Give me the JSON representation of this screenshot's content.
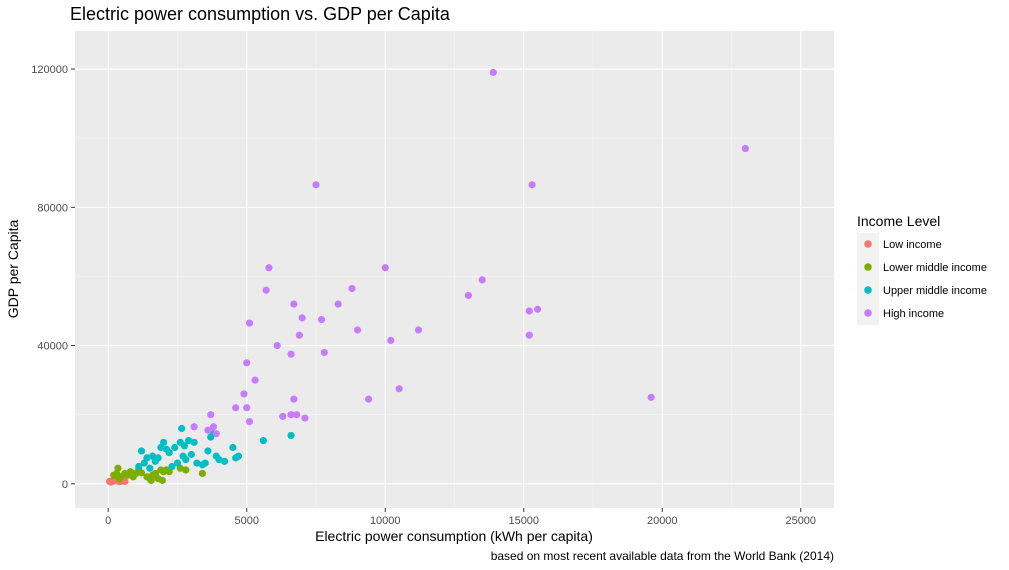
{
  "chart_data": {
    "type": "scatter",
    "title": "Electric power consumption vs. GDP per Capita",
    "xlabel": "Electric power consumption (kWh per capita)",
    "ylabel": "GDP per Capita",
    "caption": "based on most recent available data from the World Bank (2014)",
    "xlim": [
      -1200,
      26200
    ],
    "ylim": [
      -7000,
      131000
    ],
    "x_ticks": [
      0,
      5000,
      10000,
      15000,
      20000,
      25000
    ],
    "x_tick_labels": [
      "0",
      "5000",
      "10000",
      "15000",
      "20000",
      "25000"
    ],
    "y_ticks": [
      0,
      40000,
      80000,
      120000
    ],
    "y_tick_labels": [
      "0",
      "40000",
      "80000",
      "120000"
    ],
    "grid": true,
    "legend": {
      "title": "Income Level",
      "position": "right"
    },
    "series": [
      {
        "name": "Low income",
        "color": "#F8766D",
        "points": [
          [
            50,
            700
          ],
          [
            100,
            500
          ],
          [
            150,
            900
          ],
          [
            200,
            800
          ],
          [
            300,
            1200
          ],
          [
            400,
            600
          ],
          [
            500,
            800
          ],
          [
            550,
            1000
          ],
          [
            600,
            700
          ]
        ]
      },
      {
        "name": "Lower middle income",
        "color": "#7CAE00",
        "points": [
          [
            200,
            2500
          ],
          [
            300,
            3000
          ],
          [
            350,
            4500
          ],
          [
            400,
            1500
          ],
          [
            450,
            2000
          ],
          [
            600,
            3000
          ],
          [
            700,
            2500
          ],
          [
            800,
            3500
          ],
          [
            900,
            2000
          ],
          [
            1000,
            3000
          ],
          [
            1100,
            4000
          ],
          [
            1200,
            3200
          ],
          [
            1400,
            2000
          ],
          [
            1500,
            1500
          ],
          [
            1550,
            1000
          ],
          [
            1600,
            2500
          ],
          [
            1700,
            3000
          ],
          [
            1800,
            1500
          ],
          [
            1900,
            4000
          ],
          [
            1950,
            1000
          ],
          [
            2000,
            3500
          ],
          [
            2100,
            4000
          ],
          [
            2200,
            3500
          ],
          [
            2600,
            4500
          ],
          [
            2800,
            4000
          ],
          [
            3400,
            3000
          ]
        ]
      },
      {
        "name": "Upper middle income",
        "color": "#00BFC4",
        "points": [
          [
            1100,
            5000
          ],
          [
            1200,
            9500
          ],
          [
            1300,
            6000
          ],
          [
            1400,
            7500
          ],
          [
            1500,
            4500
          ],
          [
            1600,
            8000
          ],
          [
            1700,
            6500
          ],
          [
            1800,
            7500
          ],
          [
            1900,
            10500
          ],
          [
            2000,
            12000
          ],
          [
            2100,
            10000
          ],
          [
            2200,
            9000
          ],
          [
            2300,
            5000
          ],
          [
            2400,
            10500
          ],
          [
            2500,
            6000
          ],
          [
            2600,
            12000
          ],
          [
            2650,
            16000
          ],
          [
            2700,
            8000
          ],
          [
            2750,
            11000
          ],
          [
            2800,
            7000
          ],
          [
            2900,
            12500
          ],
          [
            3000,
            8500
          ],
          [
            3100,
            12000
          ],
          [
            3200,
            6000
          ],
          [
            3400,
            5500
          ],
          [
            3500,
            6000
          ],
          [
            3600,
            9500
          ],
          [
            3700,
            13500
          ],
          [
            3800,
            14500
          ],
          [
            3900,
            8000
          ],
          [
            4000,
            7000
          ],
          [
            4200,
            6500
          ],
          [
            4500,
            10500
          ],
          [
            4600,
            7500
          ],
          [
            4700,
            8000
          ],
          [
            5600,
            12500
          ],
          [
            6600,
            14000
          ]
        ]
      },
      {
        "name": "High income",
        "color": "#C77CFF",
        "points": [
          [
            3100,
            16500
          ],
          [
            3600,
            15500
          ],
          [
            3700,
            20000
          ],
          [
            3800,
            16500
          ],
          [
            3900,
            14500
          ],
          [
            4600,
            22000
          ],
          [
            4900,
            26000
          ],
          [
            5000,
            35000
          ],
          [
            5000,
            22000
          ],
          [
            5100,
            18000
          ],
          [
            5100,
            46500
          ],
          [
            5300,
            30000
          ],
          [
            5700,
            56000
          ],
          [
            5800,
            62500
          ],
          [
            6100,
            40000
          ],
          [
            6300,
            19500
          ],
          [
            6600,
            37500
          ],
          [
            6600,
            20000
          ],
          [
            6700,
            52000
          ],
          [
            6700,
            24500
          ],
          [
            6800,
            20000
          ],
          [
            6900,
            43000
          ],
          [
            7000,
            48000
          ],
          [
            7100,
            19000
          ],
          [
            7500,
            86500
          ],
          [
            7700,
            47500
          ],
          [
            7800,
            38000
          ],
          [
            8300,
            52000
          ],
          [
            8800,
            56500
          ],
          [
            9000,
            44500
          ],
          [
            9400,
            24500
          ],
          [
            10000,
            62500
          ],
          [
            10200,
            41500
          ],
          [
            10500,
            27500
          ],
          [
            11200,
            44500
          ],
          [
            13000,
            54500
          ],
          [
            13500,
            59000
          ],
          [
            13900,
            119000
          ],
          [
            15200,
            43000
          ],
          [
            15200,
            50000
          ],
          [
            15300,
            86500
          ],
          [
            15500,
            50500
          ],
          [
            19600,
            25000
          ],
          [
            23000,
            97000
          ]
        ]
      }
    ]
  }
}
